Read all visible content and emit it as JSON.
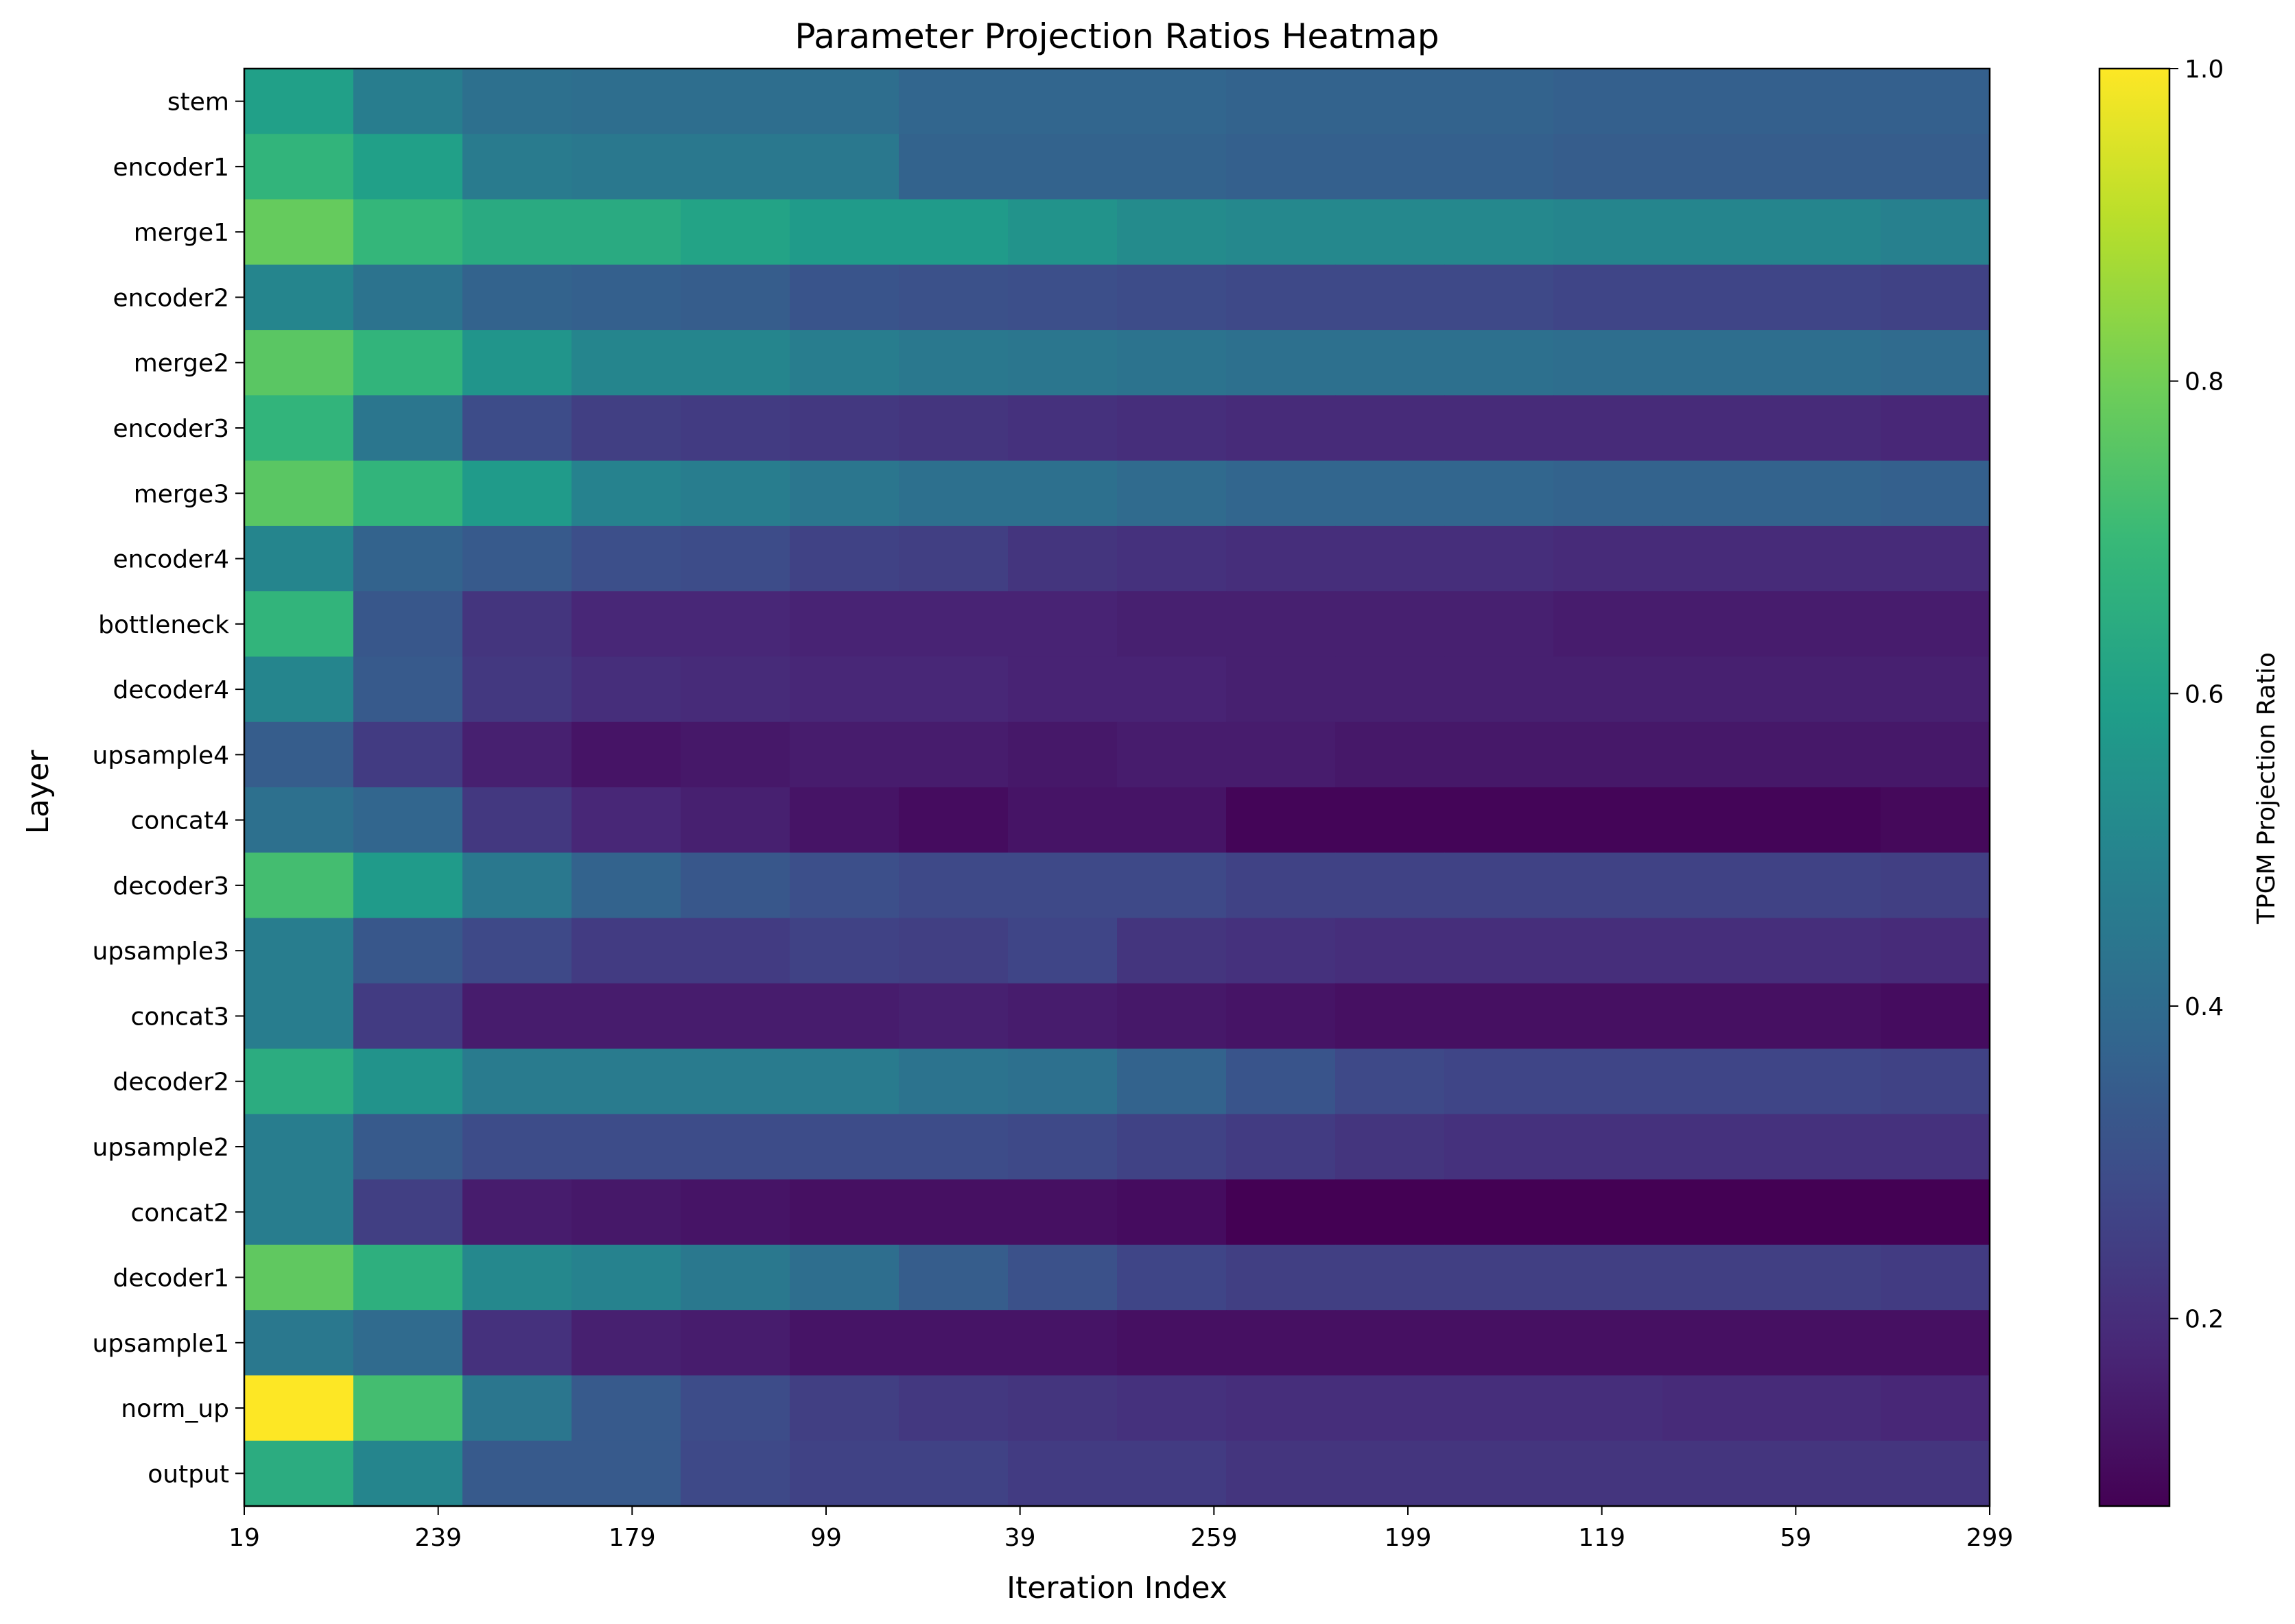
{
  "chart_data": {
    "type": "heatmap",
    "title": "Parameter Projection Ratios Heatmap",
    "xlabel": "Iteration Index",
    "ylabel": "Layer",
    "colorbar_label": "TPGM Projection Ratio",
    "colormap": "viridis",
    "vmin": 0.08,
    "vmax": 1.0,
    "colorbar_ticks": [
      "0.2",
      "0.4",
      "0.6",
      "0.8",
      "1.0"
    ],
    "colorbar_tick_values": [
      0.2,
      0.4,
      0.6,
      0.8,
      1.0
    ],
    "x_tick_labels": [
      "19",
      "239",
      "179",
      "99",
      "39",
      "259",
      "199",
      "119",
      "59",
      "299"
    ],
    "layers": [
      "stem",
      "encoder1",
      "merge1",
      "encoder2",
      "merge2",
      "encoder3",
      "merge3",
      "encoder4",
      "bottleneck",
      "decoder4",
      "upsample4",
      "concat4",
      "decoder3",
      "upsample3",
      "concat3",
      "decoder2",
      "upsample2",
      "concat2",
      "decoder1",
      "upsample1",
      "norm_up",
      "output"
    ],
    "values": [
      [
        0.6,
        0.47,
        0.42,
        0.41,
        0.41,
        0.41,
        0.38,
        0.38,
        0.38,
        0.37,
        0.37,
        0.37,
        0.36,
        0.36,
        0.36,
        0.36
      ],
      [
        0.68,
        0.6,
        0.46,
        0.45,
        0.45,
        0.45,
        0.37,
        0.37,
        0.37,
        0.36,
        0.36,
        0.36,
        0.35,
        0.35,
        0.35,
        0.35
      ],
      [
        0.78,
        0.69,
        0.64,
        0.64,
        0.61,
        0.58,
        0.58,
        0.55,
        0.52,
        0.51,
        0.51,
        0.51,
        0.5,
        0.5,
        0.5,
        0.48
      ],
      [
        0.5,
        0.43,
        0.37,
        0.36,
        0.35,
        0.32,
        0.31,
        0.3,
        0.29,
        0.28,
        0.28,
        0.28,
        0.27,
        0.27,
        0.27,
        0.26
      ],
      [
        0.76,
        0.68,
        0.56,
        0.5,
        0.5,
        0.47,
        0.45,
        0.44,
        0.43,
        0.42,
        0.42,
        0.42,
        0.41,
        0.41,
        0.41,
        0.4
      ],
      [
        0.68,
        0.44,
        0.29,
        0.25,
        0.24,
        0.23,
        0.22,
        0.21,
        0.2,
        0.19,
        0.19,
        0.19,
        0.19,
        0.19,
        0.19,
        0.18
      ],
      [
        0.76,
        0.68,
        0.58,
        0.49,
        0.47,
        0.44,
        0.42,
        0.42,
        0.4,
        0.38,
        0.38,
        0.38,
        0.37,
        0.37,
        0.37,
        0.36
      ],
      [
        0.5,
        0.37,
        0.34,
        0.3,
        0.29,
        0.26,
        0.25,
        0.22,
        0.21,
        0.2,
        0.2,
        0.2,
        0.19,
        0.19,
        0.19,
        0.19
      ],
      [
        0.68,
        0.33,
        0.22,
        0.18,
        0.18,
        0.17,
        0.17,
        0.17,
        0.16,
        0.16,
        0.16,
        0.16,
        0.15,
        0.15,
        0.15,
        0.15
      ],
      [
        0.5,
        0.34,
        0.23,
        0.2,
        0.19,
        0.18,
        0.18,
        0.17,
        0.17,
        0.16,
        0.16,
        0.16,
        0.16,
        0.16,
        0.16,
        0.16
      ],
      [
        0.35,
        0.24,
        0.16,
        0.13,
        0.14,
        0.15,
        0.15,
        0.14,
        0.15,
        0.15,
        0.14,
        0.14,
        0.14,
        0.14,
        0.14,
        0.14
      ],
      [
        0.42,
        0.38,
        0.23,
        0.18,
        0.16,
        0.13,
        0.11,
        0.13,
        0.13,
        0.09,
        0.09,
        0.09,
        0.09,
        0.09,
        0.09,
        0.1
      ],
      [
        0.72,
        0.58,
        0.45,
        0.37,
        0.33,
        0.3,
        0.28,
        0.28,
        0.28,
        0.26,
        0.26,
        0.26,
        0.26,
        0.26,
        0.26,
        0.25
      ],
      [
        0.47,
        0.33,
        0.28,
        0.24,
        0.24,
        0.26,
        0.25,
        0.27,
        0.22,
        0.21,
        0.2,
        0.2,
        0.2,
        0.2,
        0.2,
        0.19
      ],
      [
        0.47,
        0.24,
        0.15,
        0.15,
        0.15,
        0.15,
        0.16,
        0.15,
        0.14,
        0.13,
        0.12,
        0.12,
        0.12,
        0.12,
        0.12,
        0.11
      ],
      [
        0.65,
        0.55,
        0.46,
        0.46,
        0.46,
        0.46,
        0.43,
        0.42,
        0.37,
        0.32,
        0.28,
        0.27,
        0.27,
        0.27,
        0.27,
        0.26
      ],
      [
        0.47,
        0.34,
        0.29,
        0.29,
        0.29,
        0.29,
        0.29,
        0.28,
        0.26,
        0.24,
        0.22,
        0.21,
        0.21,
        0.21,
        0.21,
        0.21
      ],
      [
        0.47,
        0.25,
        0.15,
        0.14,
        0.13,
        0.12,
        0.12,
        0.12,
        0.11,
        0.08,
        0.08,
        0.08,
        0.08,
        0.08,
        0.08,
        0.08
      ],
      [
        0.77,
        0.66,
        0.51,
        0.49,
        0.45,
        0.41,
        0.35,
        0.31,
        0.27,
        0.25,
        0.25,
        0.25,
        0.25,
        0.25,
        0.25,
        0.24
      ],
      [
        0.45,
        0.4,
        0.21,
        0.16,
        0.15,
        0.13,
        0.13,
        0.13,
        0.12,
        0.12,
        0.12,
        0.12,
        0.12,
        0.12,
        0.12,
        0.12
      ],
      [
        1.0,
        0.72,
        0.44,
        0.34,
        0.29,
        0.25,
        0.23,
        0.22,
        0.21,
        0.2,
        0.2,
        0.2,
        0.2,
        0.19,
        0.19,
        0.18
      ],
      [
        0.65,
        0.5,
        0.34,
        0.34,
        0.28,
        0.26,
        0.26,
        0.24,
        0.24,
        0.22,
        0.22,
        0.22,
        0.22,
        0.22,
        0.22,
        0.22
      ]
    ]
  }
}
